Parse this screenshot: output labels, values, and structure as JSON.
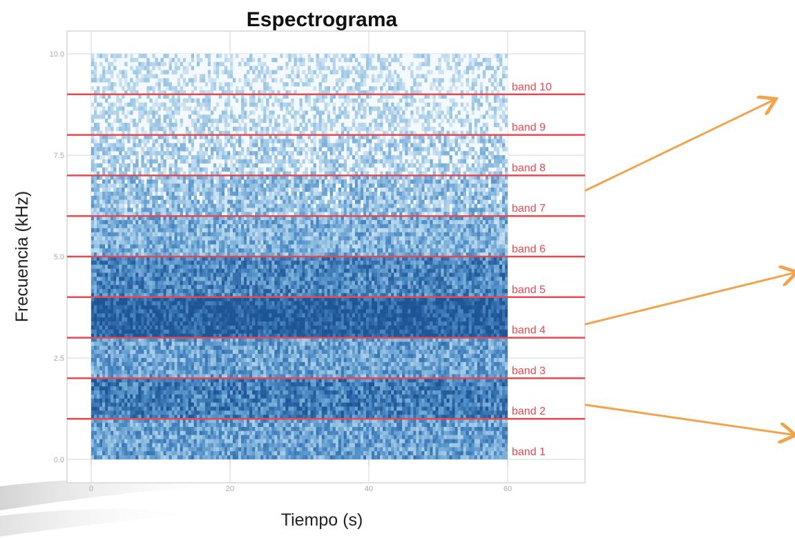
{
  "chart_data": {
    "type": "heatmap",
    "title": "Espectrograma",
    "xlabel": "Tiempo (s)",
    "ylabel": "Frecuencia (kHz)",
    "xlim": [
      0,
      70
    ],
    "ylim": [
      0,
      10
    ],
    "x_ticks": [
      "0",
      "20",
      "40",
      "60"
    ],
    "y_ticks": [
      "0.0",
      "2.5",
      "5.0",
      "7.5",
      "10.0"
    ],
    "time_range_s": [
      0,
      60
    ],
    "grid": true,
    "colormap": [
      "#f4f9fd",
      "#9ec8e6",
      "#4d8cc6",
      "#1f5596"
    ],
    "band_line_color": "#e8474f",
    "arrow_color": "#f2a24a",
    "band_boundaries_khz": [
      1,
      2,
      3,
      4,
      5,
      6,
      7,
      8,
      9
    ],
    "bands": [
      {
        "label": "band 1",
        "low_khz": 0,
        "high_khz": 1,
        "intensity": 0.55
      },
      {
        "label": "band 2",
        "low_khz": 1,
        "high_khz": 2,
        "intensity": 0.75
      },
      {
        "label": "band 3",
        "low_khz": 2,
        "high_khz": 3,
        "intensity": 0.55
      },
      {
        "label": "band 4",
        "low_khz": 3,
        "high_khz": 4,
        "intensity": 0.95
      },
      {
        "label": "band 5",
        "low_khz": 4,
        "high_khz": 5,
        "intensity": 0.7
      },
      {
        "label": "band 6",
        "low_khz": 5,
        "high_khz": 6,
        "intensity": 0.45
      },
      {
        "label": "band 7",
        "low_khz": 6,
        "high_khz": 7,
        "intensity": 0.35
      },
      {
        "label": "band 8",
        "low_khz": 7,
        "high_khz": 8,
        "intensity": 0.22
      },
      {
        "label": "band 9",
        "low_khz": 8,
        "high_khz": 9,
        "intensity": 0.12
      },
      {
        "label": "band 10",
        "low_khz": 9,
        "high_khz": 10,
        "intensity": 0.1
      }
    ]
  }
}
